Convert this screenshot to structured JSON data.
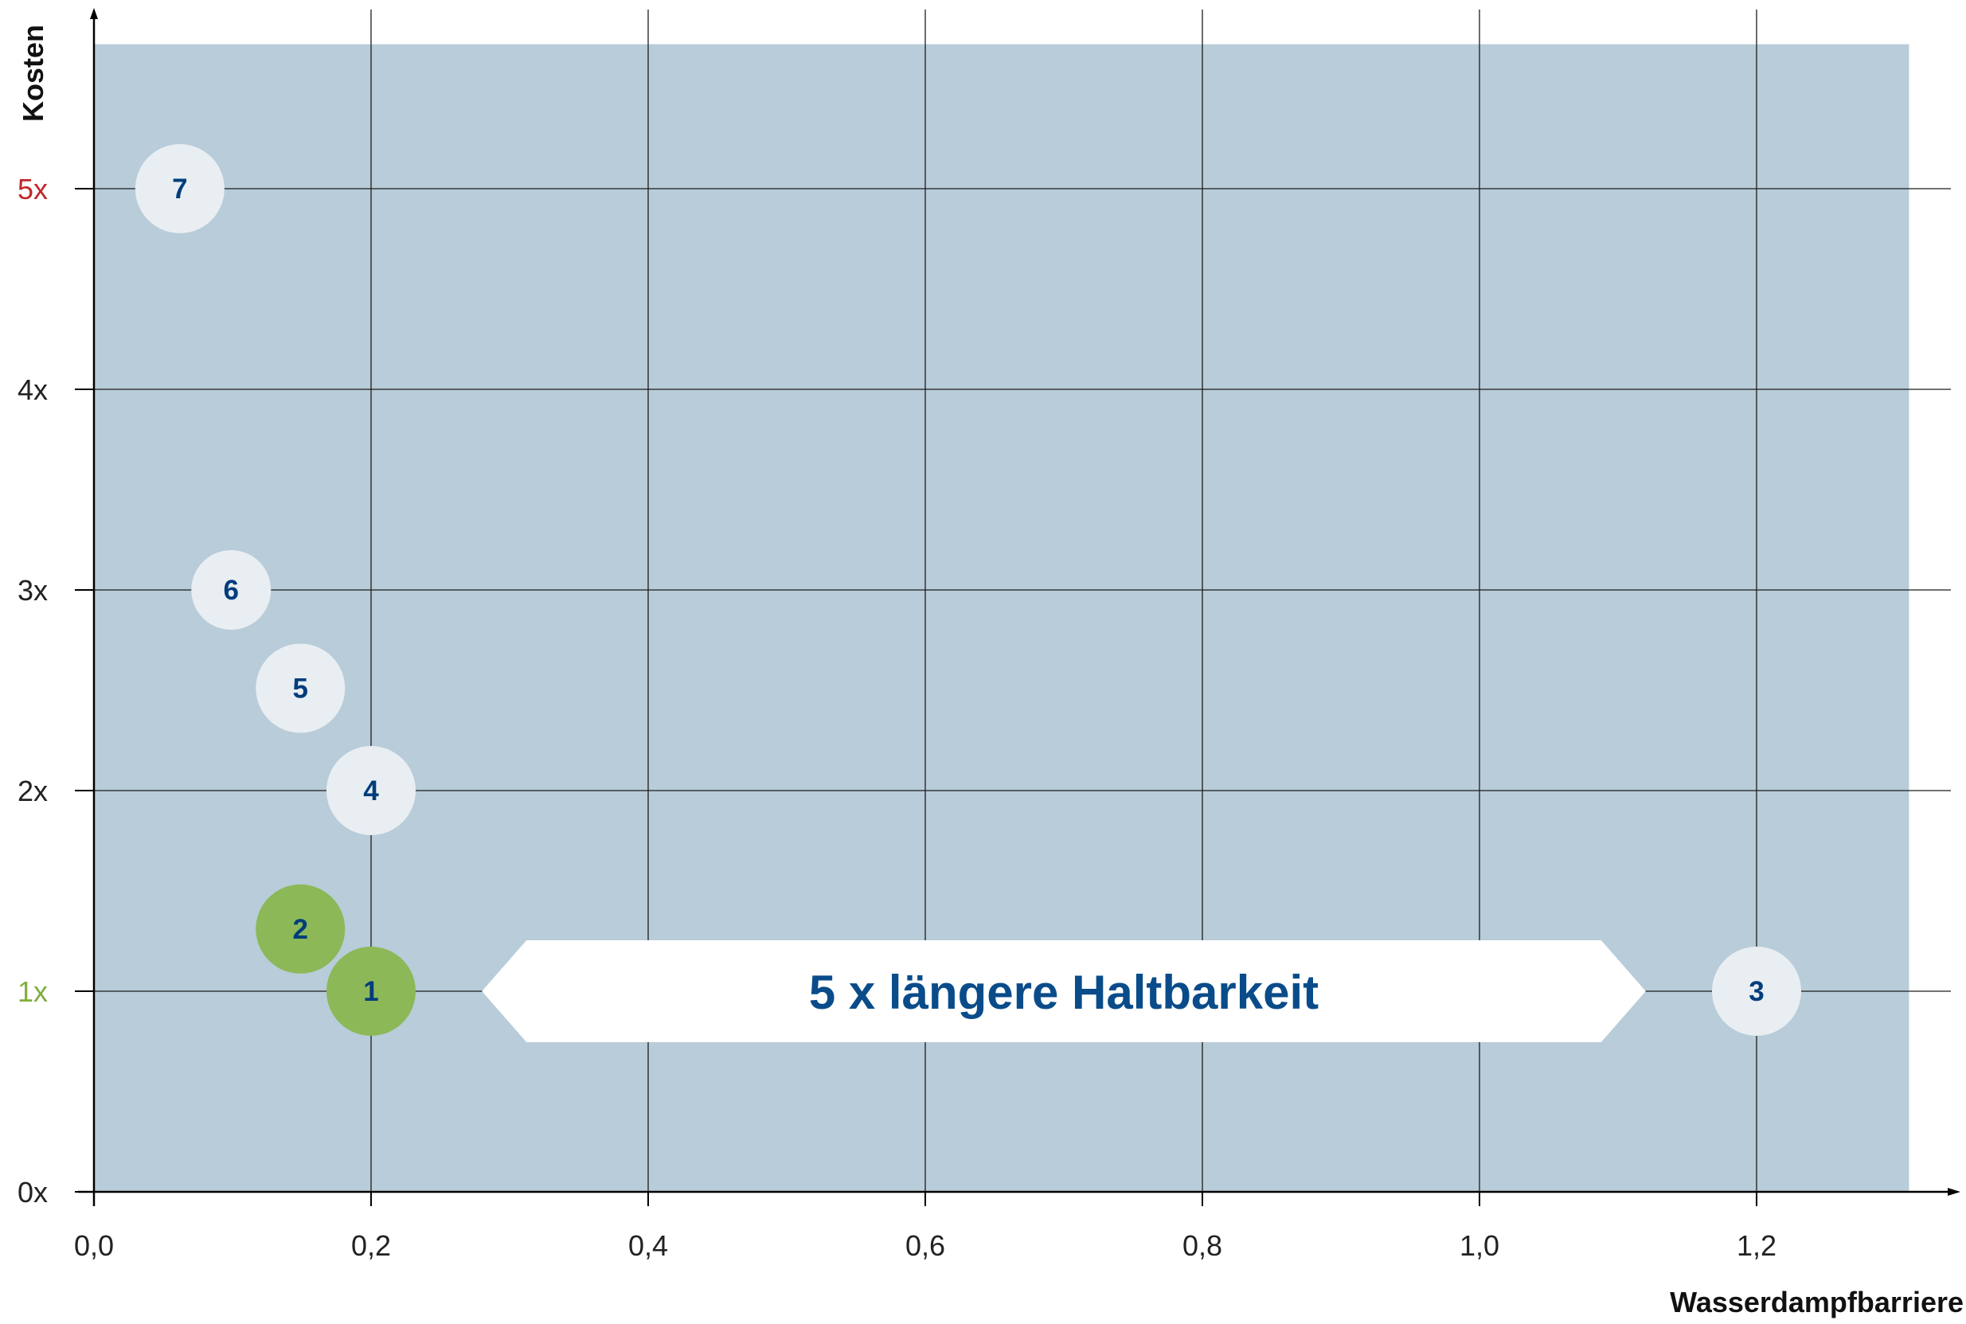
{
  "chart_data": {
    "type": "scatter",
    "title": "",
    "xlabel": "Wasserdampfbarriere",
    "ylabel": "Kosten",
    "xlim": [
      0.0,
      1.31
    ],
    "ylim": [
      0,
      5.72
    ],
    "grid": true,
    "x_ticks": [
      {
        "value": 0.0,
        "label": "0,0"
      },
      {
        "value": 0.2,
        "label": "0,2"
      },
      {
        "value": 0.4,
        "label": "0,4"
      },
      {
        "value": 0.6,
        "label": "0,6"
      },
      {
        "value": 0.8,
        "label": "0,8"
      },
      {
        "value": 1.0,
        "label": "1,0"
      },
      {
        "value": 1.2,
        "label": "1,2"
      }
    ],
    "y_ticks": [
      {
        "value": 0,
        "label": "0x",
        "color": "#222222"
      },
      {
        "value": 1,
        "label": "1x",
        "color": "#7fae3f"
      },
      {
        "value": 2,
        "label": "2x",
        "color": "#222222"
      },
      {
        "value": 3,
        "label": "3x",
        "color": "#222222"
      },
      {
        "value": 4,
        "label": "4x",
        "color": "#222222"
      },
      {
        "value": 5,
        "label": "5x",
        "color": "#c0282d"
      }
    ],
    "points": [
      {
        "label": "7",
        "x": 0.062,
        "y": 5.0,
        "highlight": false
      },
      {
        "label": "6",
        "x": 0.099,
        "y": 3.0,
        "highlight": false
      },
      {
        "label": "5",
        "x": 0.149,
        "y": 2.51,
        "highlight": false
      },
      {
        "label": "4",
        "x": 0.2,
        "y": 2.0,
        "highlight": false
      },
      {
        "label": "2",
        "x": 0.149,
        "y": 1.31,
        "highlight": true
      },
      {
        "label": "1",
        "x": 0.2,
        "y": 1.0,
        "highlight": true
      },
      {
        "label": "3",
        "x": 1.2,
        "y": 1.0,
        "highlight": false
      }
    ],
    "annotation": {
      "text": "5 x längere Haltbarkeit",
      "x_from": 0.28,
      "x_to": 1.12,
      "y": 1.0
    },
    "colors": {
      "plot_background": "#b8ccd9",
      "point_default": "#e9eef2",
      "point_highlight": "#8cb858",
      "point_text": "#003d7c",
      "banner_fill": "#ffffff",
      "banner_text": "#0a4c8a",
      "grid": "#1c1c1c"
    }
  }
}
